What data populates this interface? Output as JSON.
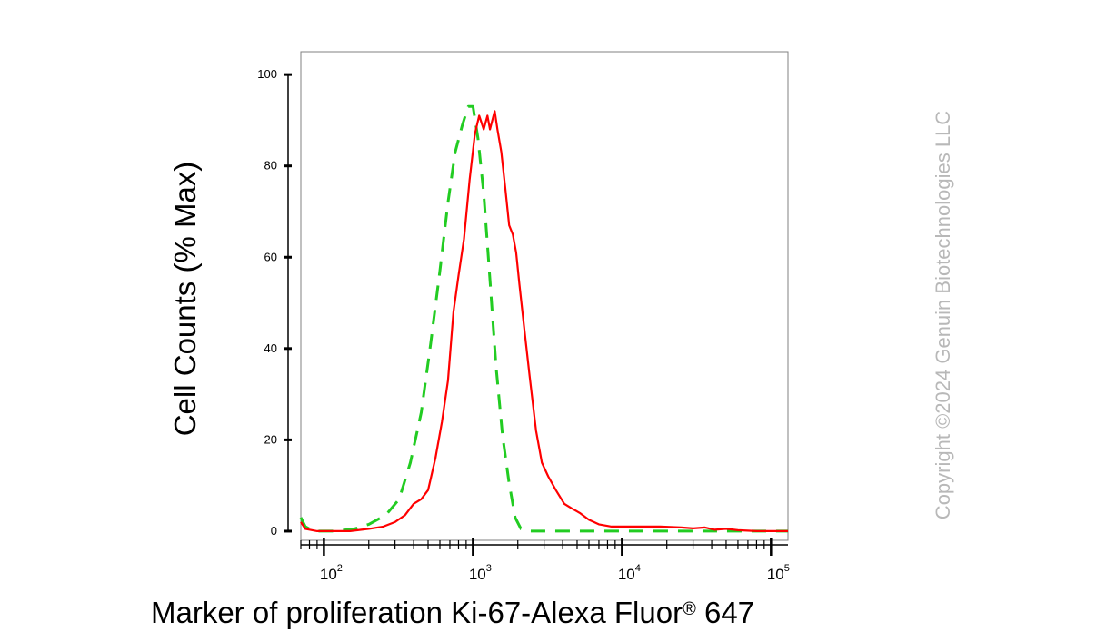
{
  "chart_data": {
    "type": "line",
    "xlabel_main": "Marker of proliferation Ki-67-Alexa Fluor",
    "xlabel_sup": "®",
    "xlabel_tail": " 647",
    "ylabel": "Cell Counts (% Max)",
    "x_scale": "log",
    "xlim": [
      70,
      130000
    ],
    "ylim": [
      -2,
      105
    ],
    "grid": false,
    "yticks": [
      0,
      20,
      40,
      60,
      80,
      100
    ],
    "ytick_labels": [
      "0",
      "20",
      "40",
      "60",
      "80",
      "100"
    ],
    "xticks": [
      100,
      1000,
      10000,
      100000
    ],
    "xtick_labels": [
      {
        "base": "10",
        "exp": "2"
      },
      {
        "base": "10",
        "exp": "3"
      },
      {
        "base": "10",
        "exp": "4"
      },
      {
        "base": "10",
        "exp": "5"
      }
    ],
    "series": [
      {
        "color": "#22cc22",
        "style": "dashed",
        "points": [
          [
            70,
            3
          ],
          [
            75,
            1
          ],
          [
            85,
            0
          ],
          [
            120,
            0
          ],
          [
            160,
            0.5
          ],
          [
            200,
            1.5
          ],
          [
            260,
            3.5
          ],
          [
            320,
            7
          ],
          [
            380,
            15
          ],
          [
            450,
            26
          ],
          [
            520,
            41
          ],
          [
            600,
            57
          ],
          [
            680,
            72
          ],
          [
            760,
            83
          ],
          [
            850,
            89
          ],
          [
            930,
            93
          ],
          [
            1000,
            93
          ],
          [
            1080,
            86
          ],
          [
            1180,
            74
          ],
          [
            1300,
            55
          ],
          [
            1430,
            36
          ],
          [
            1580,
            21
          ],
          [
            1740,
            11
          ],
          [
            1920,
            3
          ],
          [
            2100,
            0.5
          ],
          [
            2400,
            0
          ],
          [
            3000,
            0
          ],
          [
            5000,
            0
          ],
          [
            10000,
            0
          ],
          [
            20000,
            0
          ],
          [
            50000,
            0
          ],
          [
            130000,
            0
          ]
        ]
      },
      {
        "color": "#ff0000",
        "style": "solid",
        "points": [
          [
            70,
            2
          ],
          [
            75,
            0.5
          ],
          [
            90,
            0
          ],
          [
            150,
            0
          ],
          [
            200,
            0.5
          ],
          [
            250,
            1
          ],
          [
            300,
            2
          ],
          [
            350,
            3.5
          ],
          [
            400,
            6
          ],
          [
            450,
            7
          ],
          [
            500,
            9
          ],
          [
            560,
            16
          ],
          [
            620,
            24
          ],
          [
            680,
            33
          ],
          [
            740,
            48
          ],
          [
            800,
            56
          ],
          [
            870,
            64
          ],
          [
            950,
            77
          ],
          [
            1030,
            87
          ],
          [
            1100,
            91
          ],
          [
            1180,
            88
          ],
          [
            1250,
            91
          ],
          [
            1300,
            88
          ],
          [
            1350,
            90
          ],
          [
            1400,
            92
          ],
          [
            1460,
            88
          ],
          [
            1550,
            83
          ],
          [
            1650,
            75
          ],
          [
            1750,
            67
          ],
          [
            1850,
            65
          ],
          [
            1950,
            61
          ],
          [
            2050,
            54
          ],
          [
            2200,
            45
          ],
          [
            2400,
            34
          ],
          [
            2650,
            22
          ],
          [
            2900,
            15
          ],
          [
            3200,
            12
          ],
          [
            3600,
            9
          ],
          [
            4100,
            6
          ],
          [
            4600,
            5
          ],
          [
            5200,
            4
          ],
          [
            6000,
            2.5
          ],
          [
            7000,
            1.5
          ],
          [
            8500,
            1
          ],
          [
            10000,
            1
          ],
          [
            13000,
            1
          ],
          [
            18000,
            1
          ],
          [
            25000,
            0.8
          ],
          [
            30000,
            0.6
          ],
          [
            36000,
            0.8
          ],
          [
            42000,
            0.3
          ],
          [
            50000,
            0.5
          ],
          [
            60000,
            0.2
          ],
          [
            80000,
            0
          ],
          [
            130000,
            0
          ]
        ]
      }
    ]
  },
  "watermark": "Copyright ©2024 Genuin Biotechnologies LLC"
}
